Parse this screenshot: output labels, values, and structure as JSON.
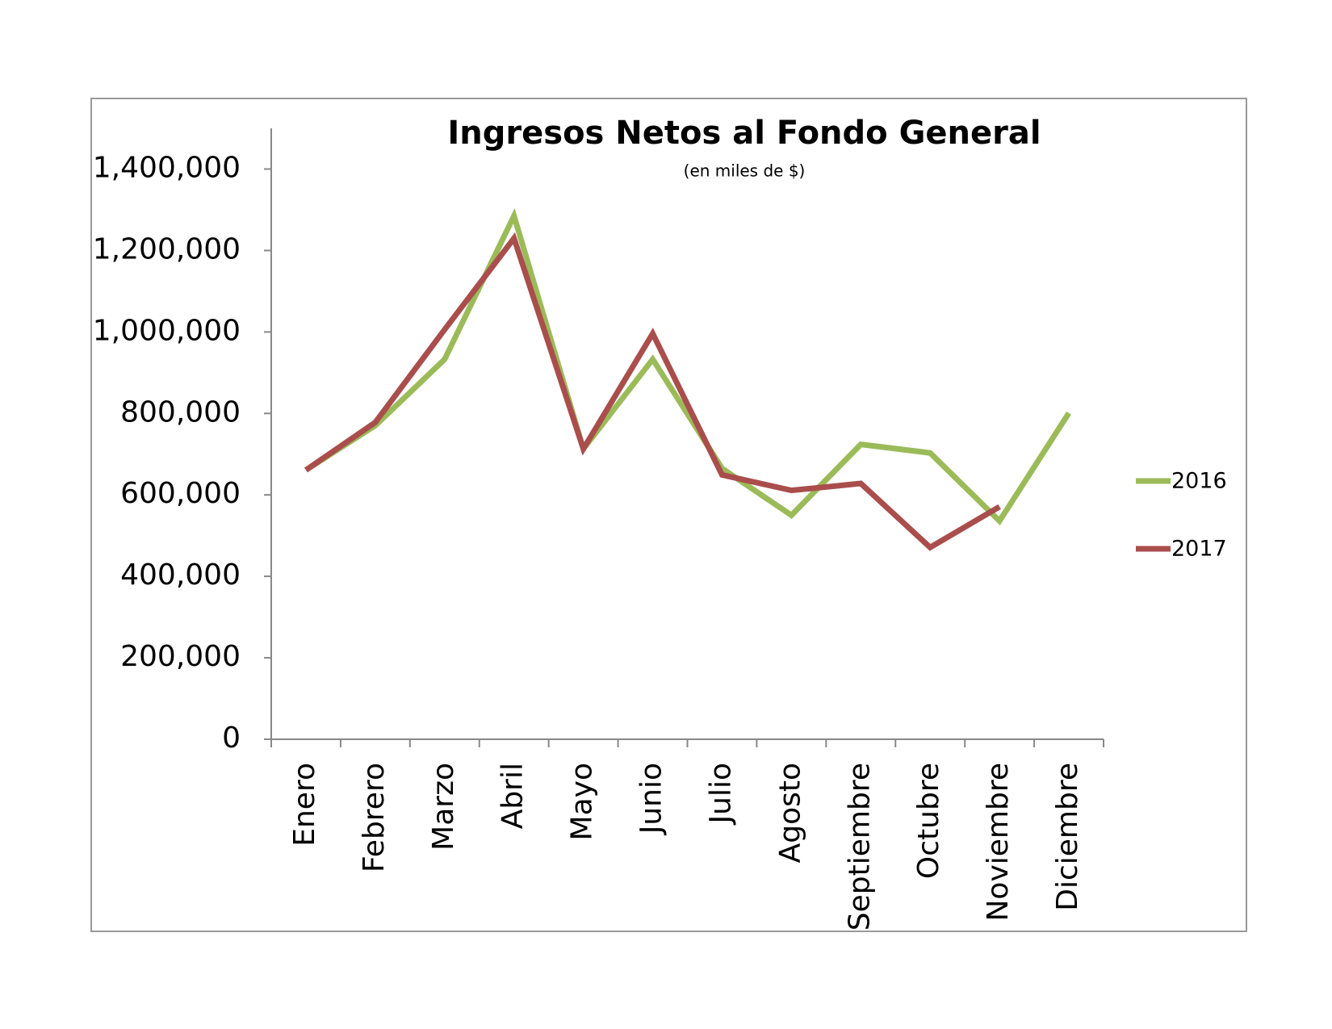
{
  "chart_data": {
    "type": "line",
    "title": "Ingresos Netos al Fondo General",
    "subtitle": "(en miles de $)",
    "categories": [
      "Enero",
      "Febrero",
      "Marzo",
      "Abril",
      "Mayo",
      "Junio",
      "Julio",
      "Agosto",
      "Septiembre",
      "Octubre",
      "Noviembre",
      "Diciembre"
    ],
    "series": [
      {
        "name": "2016",
        "color": "#9bbb59",
        "values": [
          661000,
          770000,
          933000,
          1285000,
          713000,
          933000,
          665000,
          550000,
          724000,
          703000,
          536000,
          801000
        ]
      },
      {
        "name": "2017",
        "color": "#a94e4c",
        "values": [
          661000,
          778000,
          1006000,
          1230000,
          713000,
          996000,
          649000,
          611000,
          628000,
          471000,
          571000,
          null
        ]
      }
    ],
    "ylim": [
      0,
      1500000
    ],
    "yticks": [
      0,
      {
        "value": 200000,
        "label": "200,000"
      },
      {
        "value": 400000,
        "label": "400,000"
      },
      {
        "value": 600000,
        "label": "600,000"
      },
      {
        "value": 800000,
        "label": "800,000"
      },
      {
        "value": 1000000,
        "label": "1,000,000"
      },
      {
        "value": 1200000,
        "label": "1,200,000"
      },
      {
        "value": 1400000,
        "label": "1,400,000"
      }
    ],
    "legend": "right"
  }
}
